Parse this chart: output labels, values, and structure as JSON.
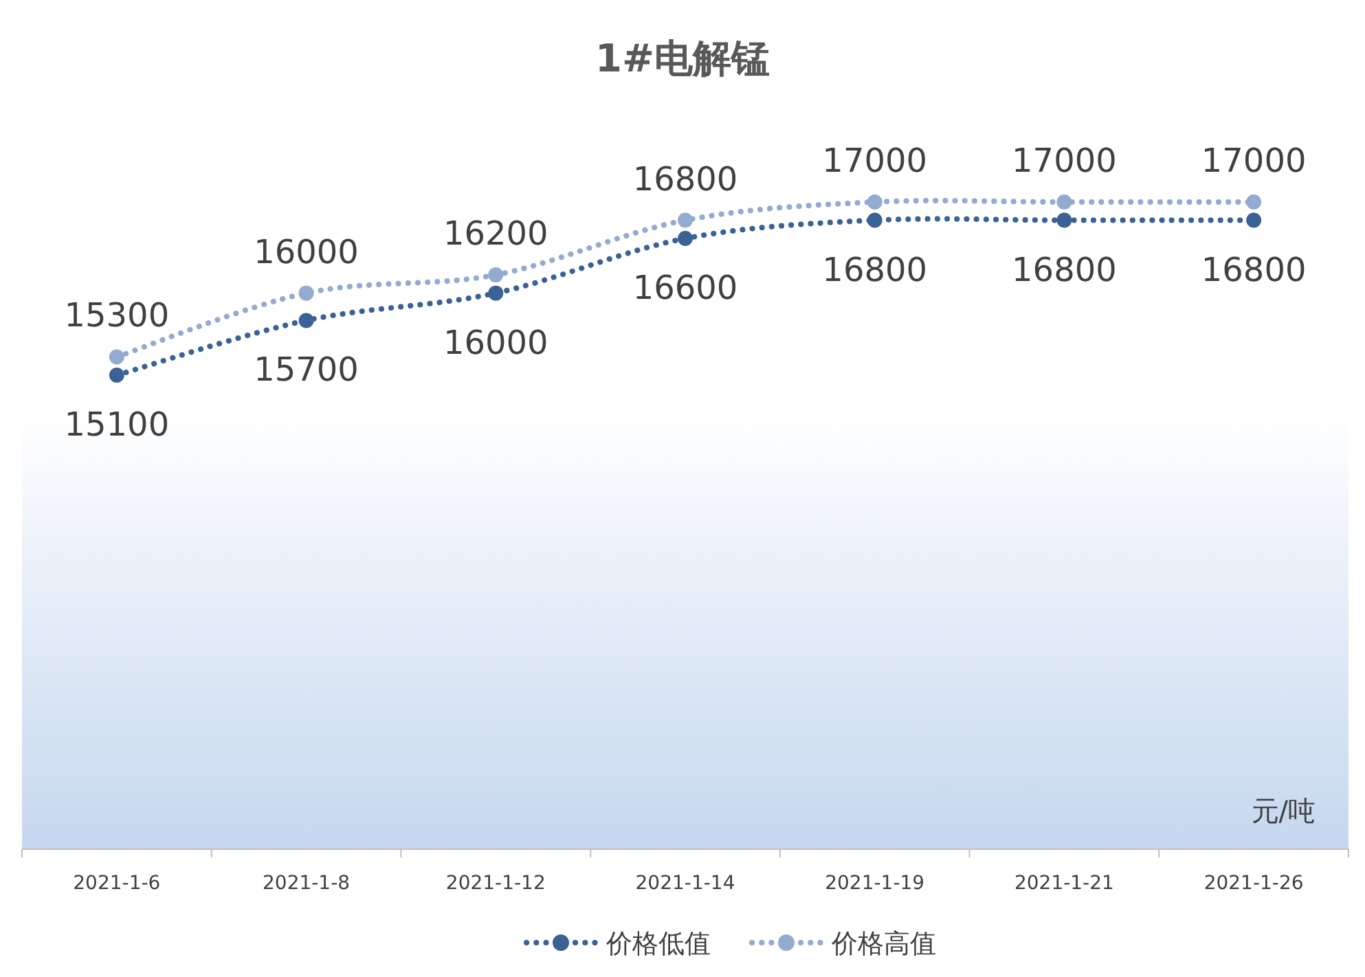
{
  "chart_data": {
    "type": "line",
    "title": "1#电解锰",
    "annotations": [
      "元/吨"
    ],
    "categories": [
      "2021-1-6",
      "2021-1-8",
      "2021-1-12",
      "2021-1-14",
      "2021-1-19",
      "2021-1-21",
      "2021-1-26"
    ],
    "series": [
      {
        "name": "价格低值",
        "color": "#3a6295",
        "values": [
          15100,
          15700,
          16000,
          16600,
          16800,
          16800,
          16800
        ]
      },
      {
        "name": "价格高值",
        "color": "#94abd0",
        "values": [
          15300,
          16000,
          16200,
          16800,
          17000,
          17000,
          17000
        ]
      }
    ],
    "data_labels": true,
    "legend": "bottom",
    "marker": "circle",
    "line_style": "dotted"
  }
}
